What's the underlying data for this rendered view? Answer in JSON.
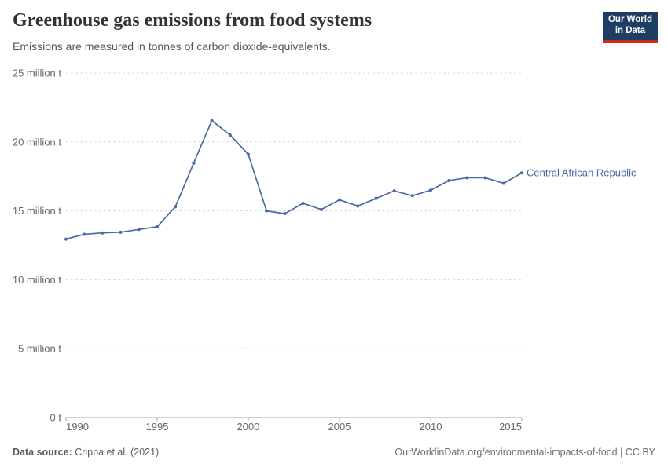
{
  "header": {
    "title": "Greenhouse gas emissions from food systems",
    "subtitle": "Emissions are measured in tonnes of carbon dioxide-equivalents.",
    "logo": {
      "line1": "Our World",
      "line2": "in Data",
      "bg_color": "#1d3d63",
      "stripe_color": "#cb2a20"
    }
  },
  "chart_data": {
    "type": "line",
    "title": "Greenhouse gas emissions from food systems",
    "xlabel": "",
    "ylabel": "",
    "values_unit": "million tonnes of carbon dioxide-equivalents",
    "x": [
      1990,
      1991,
      1992,
      1993,
      1994,
      1995,
      1996,
      1997,
      1998,
      1999,
      2000,
      2001,
      2002,
      2003,
      2004,
      2005,
      2006,
      2007,
      2008,
      2009,
      2010,
      2011,
      2012,
      2013,
      2014,
      2015
    ],
    "series": [
      {
        "name": "Central African Republic",
        "color": "#4a69a2",
        "values": [
          12.95,
          13.3,
          13.4,
          13.45,
          13.65,
          13.85,
          15.3,
          18.45,
          21.55,
          20.5,
          19.1,
          15.0,
          14.8,
          15.55,
          15.1,
          15.8,
          15.35,
          15.9,
          16.45,
          16.1,
          16.5,
          17.2,
          17.4,
          17.4,
          17.0,
          17.75
        ]
      }
    ],
    "ylim_millions": [
      0,
      25
    ],
    "y_ticks": [
      {
        "value": 0,
        "label": "0 t"
      },
      {
        "value": 5,
        "label": "5 million t"
      },
      {
        "value": 10,
        "label": "10 million t"
      },
      {
        "value": 15,
        "label": "15 million t"
      },
      {
        "value": 20,
        "label": "20 million t"
      },
      {
        "value": 25,
        "label": "25 million t"
      }
    ],
    "x_ticks": [
      1990,
      1995,
      2000,
      2005,
      2010,
      2015
    ],
    "grid": "dashed-horizontal",
    "legend_position": "end-of-line-label",
    "colors": {
      "line": "#4a69a2",
      "gridline": "#dcdcdc",
      "axis_line": "#a3a3a3",
      "axis_text": "#666666"
    }
  },
  "footer": {
    "source_label": "Data source:",
    "source_value": "Crippa et al. (2021)",
    "credit": "OurWorldinData.org/environmental-impacts-of-food | CC BY"
  }
}
